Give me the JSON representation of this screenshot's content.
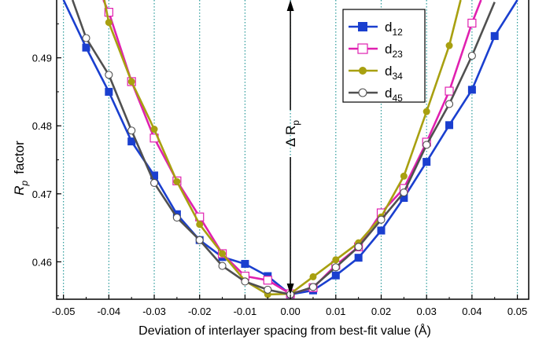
{
  "chart_data": {
    "type": "line",
    "xlabel": "Deviation of interlayer spacing from best-fit value (Å)",
    "ylabel_main": "R",
    "ylabel_sub": "p",
    "ylabel_rest": "factor",
    "xlim": [
      -0.0515,
      0.0525
    ],
    "ylim": [
      0.4545,
      0.4985
    ],
    "xticks": [
      -0.05,
      -0.04,
      -0.03,
      -0.02,
      -0.01,
      0.0,
      0.01,
      0.02,
      0.03,
      0.04,
      0.05
    ],
    "xtick_labels": [
      "-0.05",
      "-0.04",
      "-0.03",
      "-0.02",
      "-0.01",
      "0.00",
      "0.01",
      "0.02",
      "0.03",
      "0.04",
      "0.05"
    ],
    "yticks": [
      0.46,
      0.47,
      0.48,
      0.49
    ],
    "ytick_labels": [
      "0.46",
      "0.47",
      "0.48",
      "0.49"
    ],
    "grid": "vertical dotted at x ticks",
    "legend_position": "top-right",
    "annotation": {
      "main": "Δ R",
      "sub": "p",
      "x": 0.0,
      "y_low": 0.4552,
      "y_high": 0.4985
    },
    "series": [
      {
        "name_main": "d",
        "name_sub": "12",
        "color": "#1a3fcf",
        "marker": "filled-square",
        "x": [
          -0.05,
          -0.045,
          -0.04,
          -0.035,
          -0.03,
          -0.025,
          -0.02,
          -0.015,
          -0.01,
          -0.005,
          0.0,
          0.005,
          0.01,
          0.015,
          0.02,
          0.025,
          0.03,
          0.035,
          0.04,
          0.045,
          0.05
        ],
        "values": [
          0.4985,
          0.4915,
          0.485,
          0.4777,
          0.4727,
          0.467,
          0.4632,
          0.4607,
          0.4597,
          0.4579,
          0.4552,
          0.4558,
          0.458,
          0.4606,
          0.4646,
          0.4694,
          0.4747,
          0.4801,
          0.4853,
          0.4932,
          0.4985
        ]
      },
      {
        "name_main": "d",
        "name_sub": "23",
        "color": "#e020b0",
        "marker": "open-square",
        "x": [
          -0.0412,
          -0.04,
          -0.035,
          -0.03,
          -0.025,
          -0.02,
          -0.015,
          -0.01,
          -0.005,
          0.0,
          0.005,
          0.01,
          0.015,
          0.02,
          0.025,
          0.03,
          0.035,
          0.04,
          0.042
        ],
        "values": [
          0.4985,
          0.4967,
          0.4865,
          0.4782,
          0.4719,
          0.4666,
          0.4612,
          0.4579,
          0.4573,
          0.4553,
          0.4562,
          0.4595,
          0.4622,
          0.4672,
          0.4708,
          0.4776,
          0.4851,
          0.4951,
          0.4985
        ]
      },
      {
        "name_main": "d",
        "name_sub": "34",
        "color": "#a8a010",
        "marker": "filled-circle",
        "x": [
          -0.041,
          -0.04,
          -0.035,
          -0.03,
          -0.025,
          -0.02,
          -0.015,
          -0.01,
          -0.005,
          0.0,
          0.005,
          0.01,
          0.015,
          0.02,
          0.025,
          0.03,
          0.035,
          0.0375
        ],
        "values": [
          0.4985,
          0.4952,
          0.4865,
          0.4795,
          0.4718,
          0.4655,
          0.4612,
          0.4572,
          0.4552,
          0.4553,
          0.4578,
          0.4603,
          0.4628,
          0.4666,
          0.4726,
          0.4821,
          0.4918,
          0.4985
        ]
      },
      {
        "name_main": "d",
        "name_sub": "45",
        "color": "#505050",
        "marker": "open-circle",
        "x": [
          -0.048,
          -0.045,
          -0.04,
          -0.035,
          -0.03,
          -0.025,
          -0.02,
          -0.015,
          -0.01,
          -0.005,
          0.0,
          0.005,
          0.01,
          0.015,
          0.02,
          0.025,
          0.03,
          0.035,
          0.04,
          0.045
        ],
        "values": [
          0.4985,
          0.4929,
          0.4875,
          0.4793,
          0.4716,
          0.4665,
          0.4632,
          0.4594,
          0.4571,
          0.4559,
          0.4552,
          0.4563,
          0.4592,
          0.4622,
          0.4662,
          0.4702,
          0.4772,
          0.4832,
          0.4903,
          0.4982
        ]
      }
    ]
  }
}
